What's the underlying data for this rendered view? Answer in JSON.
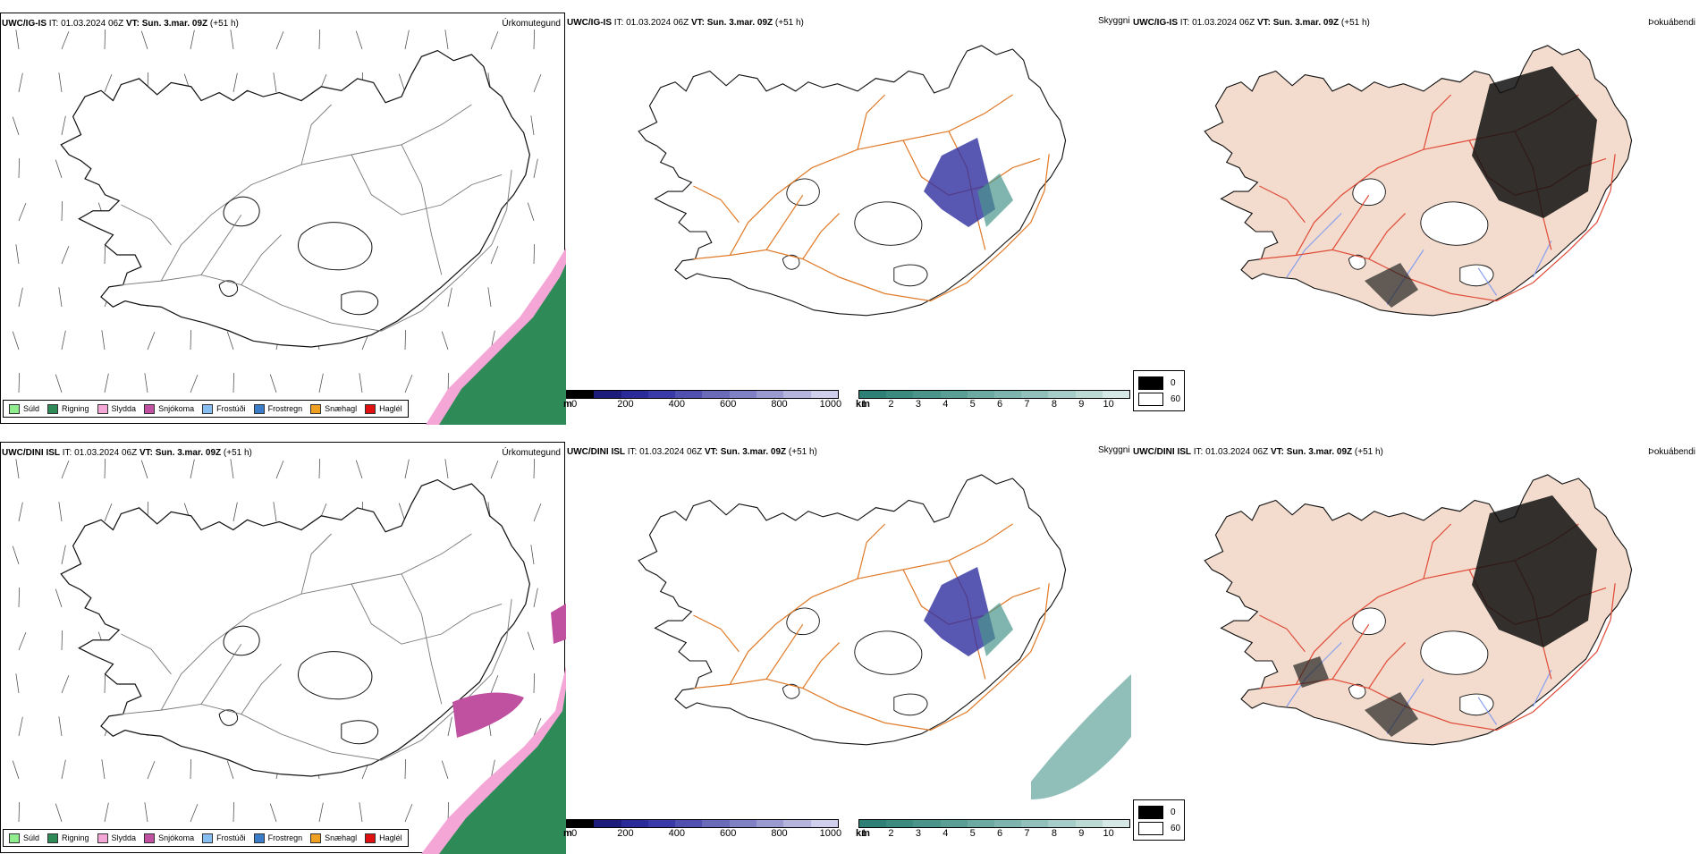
{
  "rows": [
    {
      "model": "UWC/IG-IS",
      "it_label": "IT:",
      "it_value": "01.03.2024 06Z",
      "vt_label": "VT:",
      "vt_value": "Sun. 3.mar. 09Z",
      "lead": "(+51 h)"
    },
    {
      "model": "UWC/DINI ISL",
      "it_label": "IT:",
      "it_value": "01.03.2024 06Z",
      "vt_label": "VT:",
      "vt_value": "Sun. 3.mar. 09Z",
      "lead": "(+51 h)"
    }
  ],
  "panels": {
    "precip_title": "Úrkomutegund",
    "sky_title": "Skyggni",
    "fog_title": "Þokuábendi"
  },
  "precip_legend": [
    {
      "label": "Súld",
      "color": "#90ee90"
    },
    {
      "label": "Rigning",
      "color": "#2e8b57"
    },
    {
      "label": "Slydda",
      "color": "#f4a6d7"
    },
    {
      "label": "Snjókoma",
      "color": "#c050a0"
    },
    {
      "label": "Frostúði",
      "color": "#87bdf0"
    },
    {
      "label": "Frostregn",
      "color": "#3a7cc8"
    },
    {
      "label": "Snæhagl",
      "color": "#f0a020"
    },
    {
      "label": "Haglél",
      "color": "#e01010"
    }
  ],
  "colorbar_m": {
    "unit": "m",
    "ticks": [
      "0",
      "200",
      "400",
      "600",
      "800",
      "1000"
    ],
    "colors": [
      "#000000",
      "#1c1c7a",
      "#2a2a9a",
      "#3a3aa8",
      "#5050b0",
      "#6a6ab8",
      "#8080c4",
      "#9a9ad0",
      "#b4b4dc",
      "#d0d0ec"
    ]
  },
  "colorbar_km": {
    "unit": "km",
    "ticks": [
      "1",
      "2",
      "3",
      "4",
      "5",
      "6",
      "7",
      "8",
      "9",
      "10"
    ],
    "colors": [
      "#2e7f75",
      "#3b8a80",
      "#4a948b",
      "#5a9f96",
      "#6ba9a1",
      "#7db4ad",
      "#90c0b9",
      "#a5ccc6",
      "#bcd9d4",
      "#d6e8e5"
    ]
  },
  "fog_legend": {
    "items": [
      {
        "label": "0",
        "color": "#000000"
      },
      {
        "label": "60",
        "color": "#ffffff"
      }
    ]
  },
  "colors": {
    "roads": "#e07b2a",
    "roads_fog": "#e04c3a",
    "land_fog": "#f3dccd",
    "rivers": "#8aa0f0",
    "coast": "#111111"
  }
}
